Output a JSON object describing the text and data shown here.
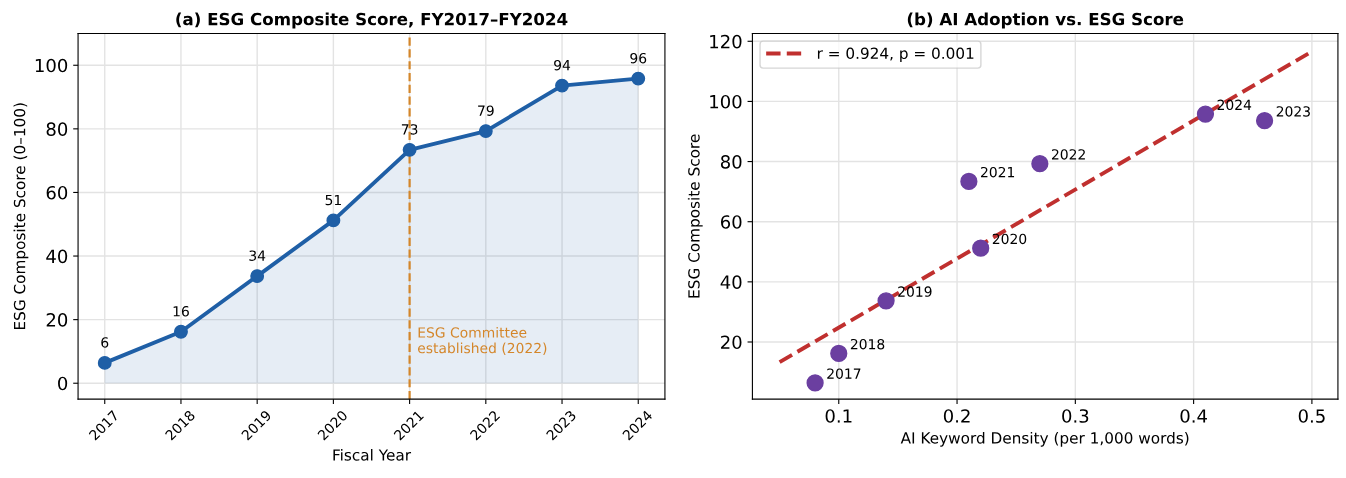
{
  "chart_data": [
    {
      "type": "area",
      "title": "(a) ESG Composite Score, FY2017–FY2024",
      "xlabel": "Fiscal Year",
      "ylabel": "ESG Composite Score (0–100)",
      "categories": [
        "2017",
        "2018",
        "2019",
        "2020",
        "2021",
        "2022",
        "2023",
        "2024"
      ],
      "series": [
        {
          "color": "#1f5fa6",
          "values": [
            6.4,
            16.2,
            33.7,
            51.2,
            73.4,
            79.3,
            93.6,
            95.8
          ],
          "value_labels": [
            "6",
            "16",
            "34",
            "51",
            "73",
            "79",
            "94",
            "96"
          ]
        }
      ],
      "ylim": [
        -5,
        110
      ],
      "yticks": [
        0,
        20,
        40,
        60,
        80,
        100
      ],
      "grid": true,
      "marker": "circle",
      "line_style": "solid",
      "ref_lines": [
        {
          "axis": "x",
          "value": "2021",
          "label": "ESG Committee\nestablished (2022)",
          "color": "#d4862a",
          "line_style": "dashed"
        }
      ]
    },
    {
      "type": "scatter",
      "title": "(b) AI Adoption vs. ESG Score",
      "xlabel": "AI Keyword Density (per 1,000 words)",
      "ylabel": "ESG Composite Score",
      "x": [
        0.08,
        0.1,
        0.14,
        0.22,
        0.21,
        0.27,
        0.46,
        0.41
      ],
      "series": [
        {
          "color": "#6b3fa0",
          "values": [
            6.4,
            16.2,
            33.7,
            51.2,
            73.4,
            79.3,
            93.6,
            95.8
          ]
        },
        {
          "type": "line",
          "name": "r = 0.924, p = 0.001",
          "color": "#c0302f",
          "x": [
            0.05,
            0.5
          ],
          "values": [
            13.3,
            116.6
          ],
          "line_style": "dashed",
          "marker": "none"
        }
      ],
      "annotations": [
        {
          "text": "2017",
          "x": 0.08,
          "y": 6.4
        },
        {
          "text": "2018",
          "x": 0.1,
          "y": 16.2
        },
        {
          "text": "2019",
          "x": 0.14,
          "y": 33.7
        },
        {
          "text": "2020",
          "x": 0.22,
          "y": 51.2
        },
        {
          "text": "2021",
          "x": 0.21,
          "y": 73.4
        },
        {
          "text": "2022",
          "x": 0.27,
          "y": 79.3
        },
        {
          "text": "2023",
          "x": 0.46,
          "y": 93.6
        },
        {
          "text": "2024",
          "x": 0.41,
          "y": 95.8
        }
      ],
      "xlim": [
        0.027,
        0.522
      ],
      "xticks": [
        0.1,
        0.2,
        0.3,
        0.4,
        0.5
      ],
      "ylim": [
        1,
        122.6
      ],
      "yticks": [
        20,
        40,
        60,
        80,
        100,
        120
      ],
      "grid": true,
      "legend": "top left",
      "marker": "circle"
    }
  ]
}
